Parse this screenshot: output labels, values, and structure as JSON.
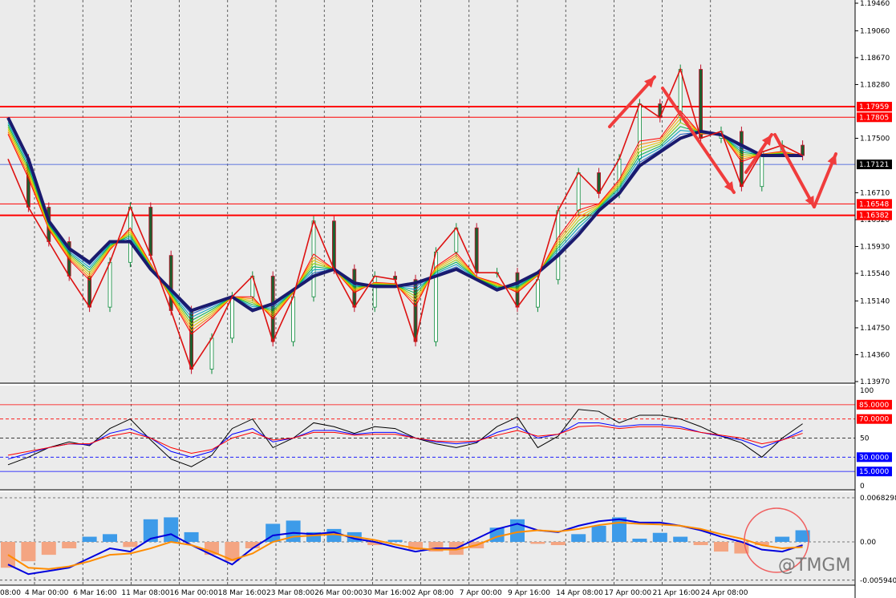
{
  "watermark": "@TMGM",
  "colors": {
    "background": "#ebebeb",
    "grid": "#000000",
    "ma_main": "#1a1a6e",
    "level_red": "#ff0000",
    "current_line": "#2f4fd8",
    "rsi_black": "#000000",
    "rsi_blue": "#0000ff",
    "rsi_red": "#ff0000",
    "macd_pos": "#3d9be9",
    "macd_neg": "#f4a582",
    "macd_line": "#0000dd",
    "signal_line": "#ff8c00",
    "arrow": "#f03c3c"
  },
  "chart_data": [
    {
      "type": "candlestick",
      "title": "",
      "x_ticks": [
        "08:00",
        "4 Mar 00:00",
        "6 Mar 16:00",
        "11 Mar 08:00",
        "16 Mar 00:00",
        "18 Mar 16:00",
        "23 Mar 08:00",
        "26 Mar 00:00",
        "30 Mar 16:00",
        "2 Apr 08:00",
        "7 Apr 00:00",
        "9 Apr 16:00",
        "14 Apr 08:00",
        "17 Apr 00:00",
        "21 Apr 16:00",
        "24 Apr 08:00"
      ],
      "y_ticks": [
        "1.19460",
        "1.19060",
        "1.18670",
        "1.18280",
        "1.17500",
        "1.16710",
        "1.16320",
        "1.15930",
        "1.15540",
        "1.15140",
        "1.14750",
        "1.14360",
        "1.13970"
      ],
      "ylim": [
        1.1397,
        1.1946
      ],
      "levels": [
        {
          "label": "1.17959",
          "value": 1.17959,
          "color": "#ff0000"
        },
        {
          "label": "1.17805",
          "value": 1.17805,
          "color": "#ff0000"
        },
        {
          "label": "1.17121",
          "value": 1.17121,
          "color": "#000000"
        },
        {
          "label": "1.16548",
          "value": 1.16548,
          "color": "#ff0000"
        },
        {
          "label": "1.16382",
          "value": 1.16382,
          "color": "#ff0000"
        }
      ],
      "series": [
        {
          "values": [
            1.172,
            1.165,
            1.16,
            1.155,
            1.1505,
            1.157,
            1.165,
            1.158,
            1.15,
            1.1415,
            1.146,
            1.152,
            1.155,
            1.1455,
            1.152,
            1.163,
            1.156,
            1.1505,
            1.155,
            1.1545,
            1.1455,
            1.1585,
            1.162,
            1.1555,
            1.1555,
            1.1505,
            1.1545,
            1.1645,
            1.17,
            1.167,
            1.172,
            1.18,
            1.178,
            1.185,
            1.175,
            1.176,
            1.168,
            1.173,
            1.174,
            1.1725
          ]
        },
        {
          "values": [
            1.178,
            1.172,
            1.163,
            1.159,
            1.157,
            1.16,
            1.16,
            1.156,
            1.153,
            1.15,
            1.151,
            1.152,
            1.15,
            1.151,
            1.153,
            1.155,
            1.156,
            1.154,
            1.1535,
            1.1535,
            1.154,
            1.155,
            1.156,
            1.1545,
            1.153,
            1.154,
            1.1555,
            1.158,
            1.161,
            1.1645,
            1.167,
            1.171,
            1.173,
            1.175,
            1.176,
            1.1755,
            1.174,
            1.1725,
            1.1725,
            1.1725
          ]
        }
      ]
    },
    {
      "type": "line",
      "title": "",
      "y_ticks": [
        "100",
        "85.0000",
        "70.0000",
        "50",
        "30.0000",
        "15.0000",
        "0"
      ],
      "ylim": [
        0,
        100
      ],
      "series": [
        {
          "values": [
            22,
            30,
            40,
            46,
            42,
            60,
            70,
            48,
            28,
            20,
            32,
            60,
            70,
            40,
            50,
            66,
            62,
            55,
            62,
            60,
            50,
            44,
            40,
            45,
            62,
            72,
            40,
            52,
            80,
            78,
            66,
            74,
            74,
            70,
            62,
            52,
            45,
            30,
            50,
            65
          ]
        },
        {
          "values": [
            28,
            34,
            40,
            44,
            43,
            55,
            60,
            50,
            36,
            30,
            36,
            54,
            60,
            46,
            50,
            58,
            58,
            54,
            56,
            56,
            50,
            46,
            44,
            46,
            56,
            62,
            50,
            54,
            66,
            66,
            62,
            64,
            64,
            62,
            56,
            52,
            48,
            40,
            48,
            58
          ]
        },
        {
          "values": [
            32,
            36,
            40,
            44,
            44,
            52,
            56,
            50,
            40,
            34,
            38,
            50,
            56,
            48,
            50,
            56,
            56,
            53,
            54,
            54,
            50,
            47,
            46,
            47,
            53,
            58,
            52,
            54,
            62,
            63,
            60,
            62,
            62,
            60,
            56,
            53,
            50,
            44,
            48,
            55
          ]
        }
      ]
    },
    {
      "type": "bar",
      "title": "",
      "y_ticks": [
        "0.0068298",
        "0.00",
        "-0.0059409"
      ],
      "ylim": [
        -0.0059409,
        0.0068298
      ],
      "series": [
        {
          "values": [
            -0.004,
            -0.003,
            -0.002,
            -0.001,
            0.0008,
            0.0012,
            -0.0008,
            0.0035,
            0.0038,
            0.0015,
            -0.002,
            -0.003,
            -0.001,
            0.0028,
            0.0033,
            0.0015,
            0.002,
            0.0015,
            -0.0005,
            0.0003,
            -0.0012,
            -0.0015,
            -0.002,
            -0.001,
            0.0022,
            0.0035,
            -0.0003,
            -0.0005,
            0.0012,
            0.0025,
            0.0038,
            0.0005,
            0.0014,
            0.0008,
            -0.0005,
            -0.0015,
            -0.0018,
            -0.0005,
            0.0008,
            0.0018
          ]
        },
        {
          "values": [
            -0.0035,
            -0.005,
            -0.0045,
            -0.004,
            -0.0025,
            -0.001,
            -0.0015,
            0.0005,
            0.0012,
            -0.0005,
            -0.002,
            -0.0035,
            -0.001,
            0.001,
            0.0014,
            0.0012,
            0.0015,
            0.0005,
            0.0,
            -0.0008,
            -0.0015,
            -0.001,
            -0.001,
            0.0005,
            0.002,
            0.0028,
            0.0018,
            0.0015,
            0.0025,
            0.0032,
            0.0035,
            0.003,
            0.003,
            0.0025,
            0.0018,
            0.0008,
            0.0,
            -0.0012,
            -0.0015,
            -0.0005
          ]
        },
        {
          "values": [
            -0.002,
            -0.004,
            -0.0042,
            -0.0038,
            -0.003,
            -0.002,
            -0.0018,
            -0.001,
            0.0,
            -0.0005,
            -0.0015,
            -0.0028,
            -0.0018,
            0.0,
            0.0008,
            0.001,
            0.0012,
            0.0008,
            0.0003,
            -0.0004,
            -0.001,
            -0.0012,
            -0.0012,
            -0.0005,
            0.0008,
            0.0015,
            0.0018,
            0.0016,
            0.002,
            0.0026,
            0.003,
            0.0028,
            0.0027,
            0.0025,
            0.002,
            0.0012,
            0.0005,
            -0.0005,
            -0.001,
            -0.0008
          ]
        }
      ]
    }
  ]
}
